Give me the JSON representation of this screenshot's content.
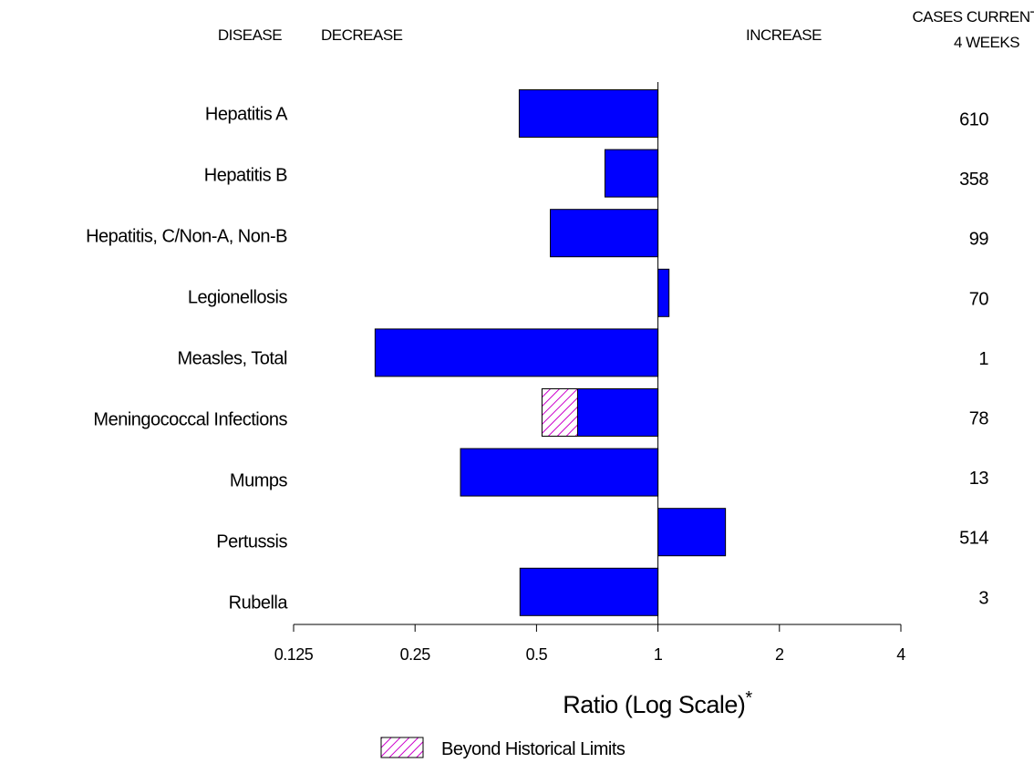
{
  "chart_data": {
    "type": "bar",
    "orientation": "horizontal",
    "headers": {
      "disease": "DISEASE",
      "decrease": "DECREASE",
      "increase": "INCREASE",
      "cases": [
        "CASES CURRENT",
        "4 WEEKS"
      ]
    },
    "categories": [
      "Hepatitis A",
      "Hepatitis B",
      "Hepatitis, C/Non-A, Non-B",
      "Legionellosis",
      "Measles, Total",
      "Meningococcal Infections",
      "Mumps",
      "Pertussis",
      "Rubella"
    ],
    "values": [
      0.453,
      0.739,
      0.541,
      1.065,
      0.199,
      0.516,
      0.324,
      1.47,
      0.455
    ],
    "beyond_historical_limits": [
      null,
      null,
      null,
      null,
      null,
      0.632,
      null,
      null,
      null
    ],
    "cases": [
      610,
      358,
      99,
      70,
      1,
      78,
      13,
      514,
      3
    ],
    "color": "#0000ff",
    "hatch_color": "#cc00cc",
    "reference_line": 1,
    "xscale": "log",
    "xlim": [
      0.125,
      4
    ],
    "xticks": [
      0.125,
      0.25,
      0.5,
      1,
      2,
      4
    ],
    "x_label": "Ratio (Log Scale)",
    "x_label_note": "*",
    "legend": "Beyond Historical Limits"
  }
}
